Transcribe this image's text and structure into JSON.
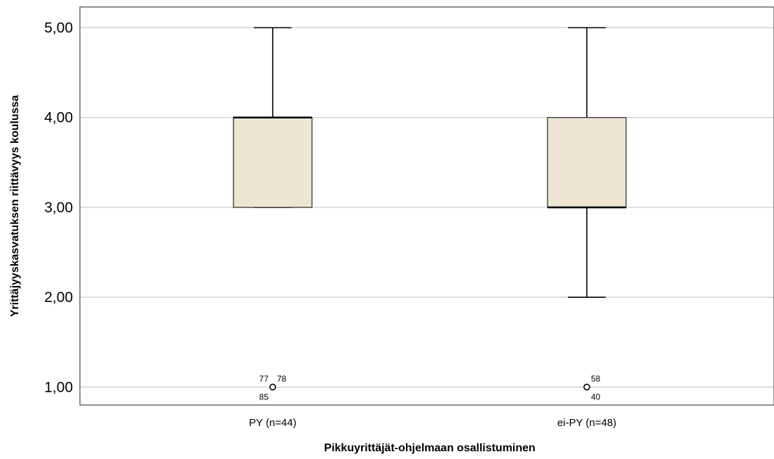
{
  "chart_data": {
    "type": "boxplot",
    "xlabel": "Pikkuyrittäjät-ohjelmaan osallistuminen",
    "ylabel": "Yrittäjyyskasvatuksen riittävyys koulussa",
    "ylim": [
      0.8,
      5.23
    ],
    "yticks": [
      1,
      2,
      3,
      4,
      5
    ],
    "ytick_labels": [
      "1,00",
      "2,00",
      "3,00",
      "4,00",
      "5,00"
    ],
    "grid": "horizontal",
    "box_color": "#ece6d3",
    "categories": [
      "PY (n=44)",
      "ei-PY (n=48)"
    ],
    "boxes": [
      {
        "label": "PY (n=44)",
        "whisker_low": 3,
        "q1": 3,
        "median": 4,
        "q3": 4,
        "whisker_high": 5,
        "outliers": [
          {
            "value": 1,
            "ids": [
              "77",
              "78",
              "85"
            ]
          }
        ]
      },
      {
        "label": "ei-PY (n=48)",
        "whisker_low": 2,
        "q1": 3,
        "median": 3,
        "q3": 4,
        "whisker_high": 5,
        "outliers": [
          {
            "value": 1,
            "ids": [
              "58",
              "40"
            ]
          }
        ]
      }
    ]
  }
}
